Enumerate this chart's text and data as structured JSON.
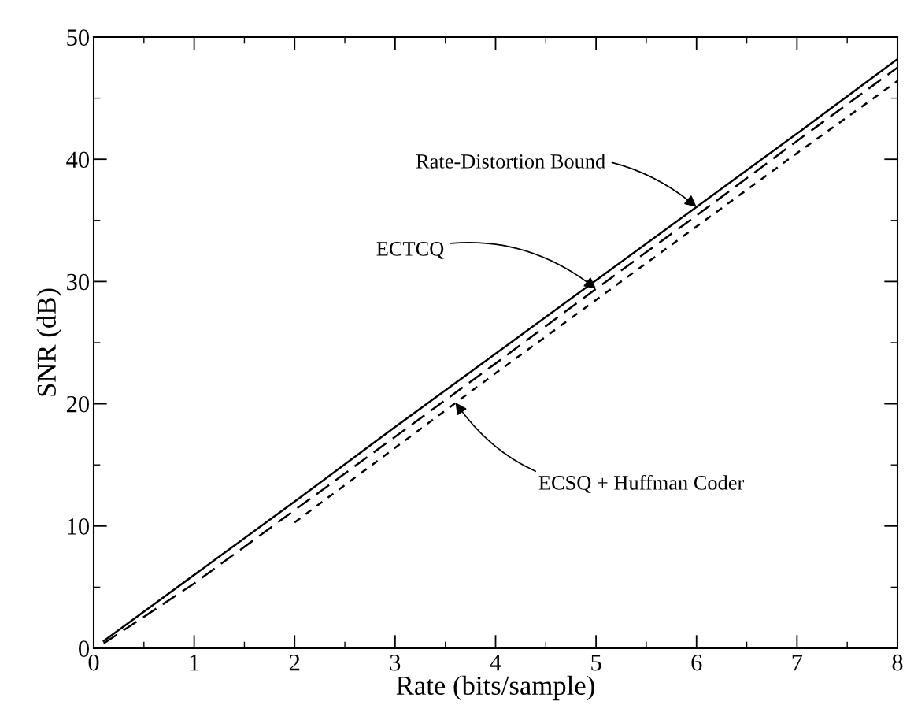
{
  "chart_data": {
    "type": "line",
    "xlabel": "Rate (bits/sample)",
    "ylabel": "SNR (dB)",
    "xlim": [
      0,
      8
    ],
    "ylim": [
      0,
      50
    ],
    "xticks": [
      0,
      1,
      2,
      3,
      4,
      5,
      6,
      7,
      8
    ],
    "yticks": [
      0,
      10,
      20,
      30,
      40,
      50
    ],
    "grid": false,
    "legend": false,
    "series": [
      {
        "color": "#000000",
        "line_style": "solid",
        "x": [
          0.1,
          1,
          2,
          3,
          4,
          5,
          6,
          7,
          8
        ],
        "values": [
          0.6,
          6.0,
          12.0,
          18.1,
          24.1,
          30.1,
          36.1,
          42.1,
          48.2
        ]
      },
      {
        "color": "#000000",
        "line_style": "dashed",
        "x": [
          0.1,
          1,
          2,
          3,
          4,
          5,
          6,
          7,
          8
        ],
        "values": [
          0.4,
          5.3,
          11.3,
          17.3,
          23.3,
          29.4,
          35.4,
          41.5,
          47.5
        ]
      },
      {
        "color": "#000000",
        "line_style": "dotted",
        "x": [
          2,
          3,
          4,
          5,
          6,
          7,
          8
        ],
        "values": [
          10.3,
          16.4,
          22.5,
          28.5,
          34.5,
          40.5,
          46.4
        ]
      }
    ],
    "annotations": [
      {
        "text": "Rate-Distortion Bound",
        "x": 6,
        "y": 36.1
      },
      {
        "text": "ECTCQ",
        "x": 5,
        "y": 29.4
      },
      {
        "text": "ECSQ + Huffman Coder",
        "x": 3.6,
        "y": 20.1
      }
    ]
  }
}
